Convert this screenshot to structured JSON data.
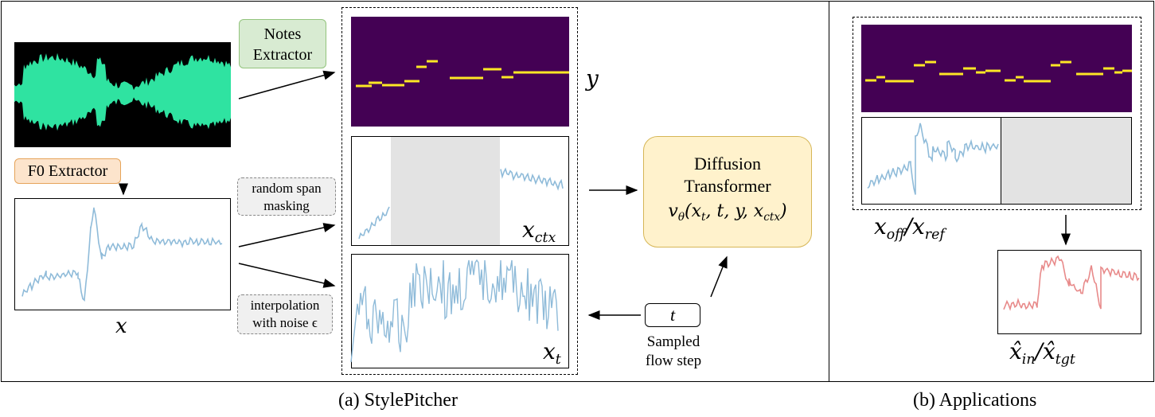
{
  "panels": {
    "left_caption": "(a) StylePitcher",
    "right_caption": "(b) Applications"
  },
  "blocks": {
    "notes_extractor": [
      "Notes",
      "Extractor"
    ],
    "f0_extractor": "F0 Extractor",
    "random_span": [
      "random span",
      "masking"
    ],
    "interpolation": [
      "interpolation",
      "with noise ϵ"
    ],
    "diffusion": [
      "Diffusion",
      "Transformer"
    ],
    "diffusion_formula": "vθ(xt, t, y, xctx)",
    "t_label": "t",
    "sampled_flow": [
      "Sampled",
      "flow step"
    ]
  },
  "labels": {
    "x": "x",
    "y": "y",
    "x_ctx": "xctx",
    "x_t": "xt",
    "x_off_ref": "xoff/xref",
    "x_hat": "x̂in/x̂tgt"
  },
  "colors": {
    "waveform_bg": "#000000",
    "waveform": "#2fe3a1",
    "pitch_line": "#8fbbd9",
    "output_line": "#e88a8a",
    "roll_bg": "#440154",
    "roll_notes": "#fde725",
    "mask_gray": "#e3e3e3",
    "notes_box": "#d8ebd2",
    "f0_box": "#fce4cc",
    "diffusion_box": "#fff2cc"
  }
}
